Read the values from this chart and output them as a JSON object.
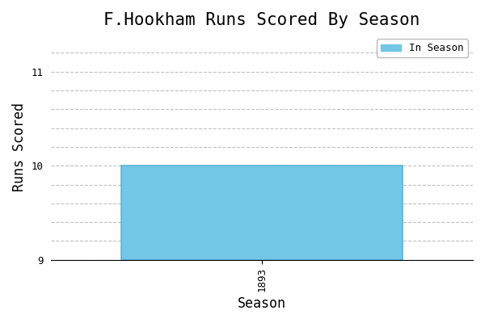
{
  "title": "F.Hookham Runs Scored By Season",
  "xlabel": "Season",
  "ylabel": "Runs Scored",
  "seasons": [
    "1893"
  ],
  "values": [
    10
  ],
  "bar_color": "#72c7e7",
  "bar_edgecolor": "#5ab5d5",
  "ylim": [
    9.0,
    11.4
  ],
  "ytick_values": [
    9.0,
    9.2,
    9.4,
    9.6,
    9.8,
    10.0,
    10.2,
    10.4,
    10.6,
    10.8,
    11.0,
    11.2
  ],
  "legend_label": "In Season",
  "legend_patch_color": "#72c7e7",
  "background_color": "#ffffff",
  "grid_color": "#bbbbbb",
  "title_fontsize": 15,
  "label_fontsize": 12,
  "tick_fontsize": 9,
  "font_family": "monospace"
}
